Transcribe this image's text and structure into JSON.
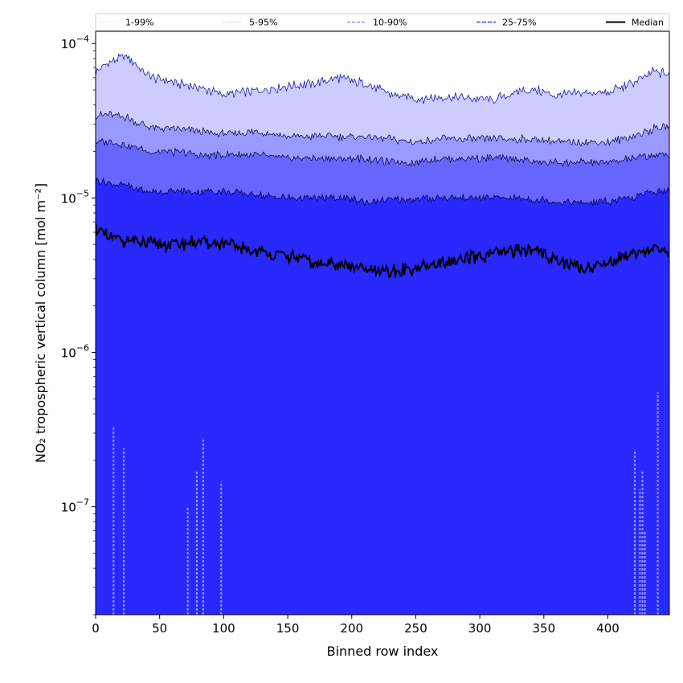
{
  "chart_data": {
    "type": "area",
    "xlabel": "Binned row index",
    "ylabel": "NO₂ tropospheric vertical column [mol m⁻²]",
    "xlim": [
      0,
      448
    ],
    "ylim": [
      2e-08,
      0.00012
    ],
    "yscale": "log",
    "grid": false,
    "legend_placement": "top (horizontal, above plot)",
    "x_ticks": [
      "0",
      "50",
      "100",
      "150",
      "200",
      "250",
      "300",
      "350",
      "400"
    ],
    "y_ticks": [
      {
        "value": 1e-07,
        "mantissa": "10",
        "exp": "−7"
      },
      {
        "value": 1e-06,
        "mantissa": "10",
        "exp": "−6"
      },
      {
        "value": 1e-05,
        "mantissa": "10",
        "exp": "−5"
      },
      {
        "value": 0.0001,
        "mantissa": "10",
        "exp": "−4"
      }
    ],
    "x": [
      0,
      10,
      25,
      40,
      60,
      80,
      100,
      125,
      150,
      175,
      190,
      210,
      230,
      250,
      270,
      290,
      310,
      330,
      345,
      360,
      380,
      400,
      420,
      435,
      448
    ],
    "series": [
      {
        "name": "1-99%",
        "low": 2e-08,
        "high": [
          6.5e-05,
          7.5e-05,
          8.3e-05,
          6.2e-05,
          5.6e-05,
          5.2e-05,
          4.7e-05,
          4.9e-05,
          5.3e-05,
          5.6e-05,
          6e-05,
          5.5e-05,
          4.7e-05,
          4.4e-05,
          4.5e-05,
          4.4e-05,
          4.3e-05,
          4.9e-05,
          5e-05,
          4.6e-05,
          4.8e-05,
          4.8e-05,
          5.6e-05,
          6.5e-05,
          6.4e-05
        ]
      },
      {
        "name": "5-95%",
        "low": 2e-08,
        "high": [
          3.4e-05,
          3.5e-05,
          3.3e-05,
          2.9e-05,
          2.8e-05,
          2.7e-05,
          2.6e-05,
          2.7e-05,
          2.5e-05,
          2.5e-05,
          2.5e-05,
          2.5e-05,
          2.4e-05,
          2.3e-05,
          2.4e-05,
          2.4e-05,
          2.4e-05,
          2.4e-05,
          2.4e-05,
          2.3e-05,
          2.3e-05,
          2.3e-05,
          2.5e-05,
          2.8e-05,
          2.9e-05
        ]
      },
      {
        "name": "10-90%",
        "low": 2e-08,
        "high": [
          2.3e-05,
          2.3e-05,
          2.2e-05,
          2e-05,
          2e-05,
          1.9e-05,
          1.9e-05,
          1.9e-05,
          1.8e-05,
          1.8e-05,
          1.8e-05,
          1.8e-05,
          1.7e-05,
          1.7e-05,
          1.8e-05,
          1.8e-05,
          1.8e-05,
          1.8e-05,
          1.7e-05,
          1.7e-05,
          1.7e-05,
          1.7e-05,
          1.8e-05,
          1.9e-05,
          1.9e-05
        ]
      },
      {
        "name": "25-75%",
        "low": 2e-08,
        "high": [
          1.3e-05,
          1.25e-05,
          1.2e-05,
          1.1e-05,
          1.1e-05,
          1.1e-05,
          1.1e-05,
          1.05e-05,
          1e-05,
          1e-05,
          1e-05,
          9.5e-06,
          9.8e-06,
          9.8e-06,
          1e-05,
          1e-05,
          1e-05,
          1e-05,
          9.8e-06,
          9.5e-06,
          9.3e-06,
          9.5e-06,
          1e-05,
          1.1e-05,
          1.1e-05
        ]
      },
      {
        "name": "Median",
        "values": [
          6.5e-06,
          5.5e-06,
          5.3e-06,
          5e-06,
          5e-06,
          5.2e-06,
          5e-06,
          4.5e-06,
          4.2e-06,
          3.7e-06,
          3.8e-06,
          3.4e-06,
          3.3e-06,
          3.5e-06,
          3.8e-06,
          4e-06,
          4.3e-06,
          4.6e-06,
          4.5e-06,
          4e-06,
          3.5e-06,
          3.8e-06,
          4.5e-06,
          4.7e-06,
          4.4e-06
        ]
      }
    ],
    "colors": {
      "band_1_99": "#ccccff",
      "band_5_95": "#9999ff",
      "band_10_90": "#6666ff",
      "band_25_75": "#2929ff",
      "median": "#000000",
      "frame": "#000000"
    }
  }
}
